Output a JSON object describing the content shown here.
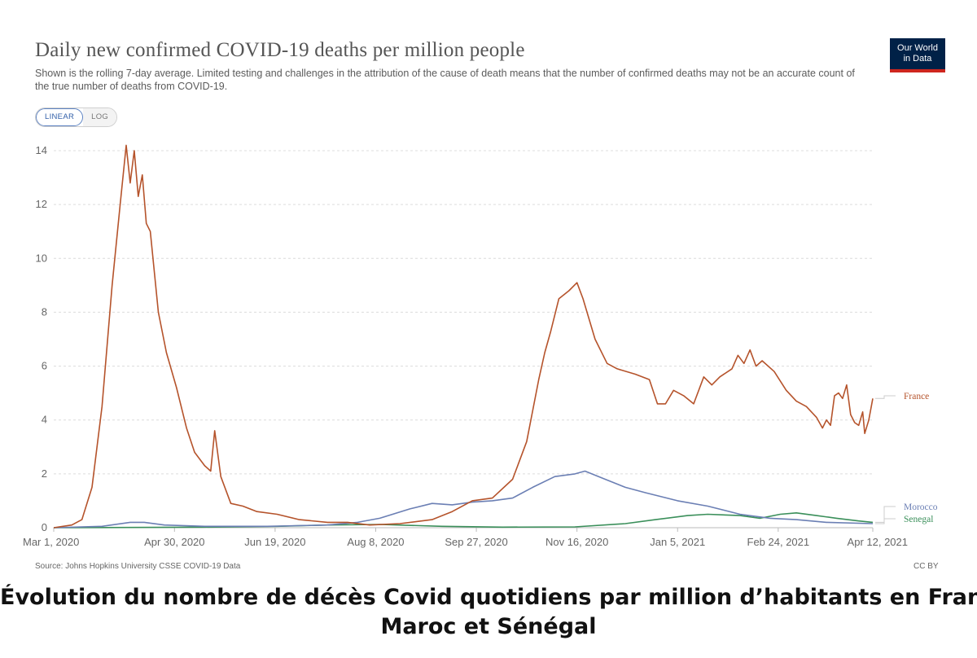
{
  "header": {
    "title": "Daily new confirmed COVID-19 deaths per million people",
    "subtitle": "Shown is the rolling 7-day average. Limited testing and challenges in the attribution of the cause of death means that the number of confirmed deaths may not be an accurate count of the true number of deaths from COVID-19.",
    "logo_line1": "Our World",
    "logo_line2": "in Data"
  },
  "controls": {
    "linear_label": "LINEAR",
    "log_label": "LOG",
    "active": "LINEAR"
  },
  "footer": {
    "source": "Source: Johns Hopkins University CSSE COVID-19 Data",
    "license": "CC BY"
  },
  "caption": {
    "line1": "Évolution du nombre de décès Covid quotidiens par million d’habitants en France,",
    "line2": "Maroc et Sénégal"
  },
  "chart_data": {
    "type": "line",
    "title": "Daily new confirmed COVID-19 deaths per million people",
    "ylim": [
      0,
      14
    ],
    "yticks": [
      0,
      2,
      4,
      6,
      8,
      10,
      12,
      14
    ],
    "xlim": [
      "2020-03-01",
      "2021-04-12"
    ],
    "xticks": [
      "Mar 1, 2020",
      "Apr 30, 2020",
      "Jun 19, 2020",
      "Aug 8, 2020",
      "Sep 27, 2020",
      "Nov 16, 2020",
      "Jan 5, 2021",
      "Feb 24, 2021",
      "Apr 12, 2021"
    ],
    "xtick_dates": [
      "2020-03-01",
      "2020-04-30",
      "2020-06-19",
      "2020-08-08",
      "2020-09-27",
      "2020-11-16",
      "2021-01-05",
      "2021-02-24",
      "2021-04-12"
    ],
    "grid": "horizontal dotted",
    "legend": "line-end labels at right",
    "series": [
      {
        "name": "France",
        "color": "#b5532b",
        "points": [
          [
            "2020-03-01",
            0
          ],
          [
            "2020-03-10",
            0.1
          ],
          [
            "2020-03-15",
            0.3
          ],
          [
            "2020-03-20",
            1.5
          ],
          [
            "2020-03-25",
            4.5
          ],
          [
            "2020-03-30",
            9.0
          ],
          [
            "2020-04-03",
            12.0
          ],
          [
            "2020-04-06",
            14.2
          ],
          [
            "2020-04-08",
            12.8
          ],
          [
            "2020-04-10",
            14.0
          ],
          [
            "2020-04-12",
            12.3
          ],
          [
            "2020-04-14",
            13.1
          ],
          [
            "2020-04-16",
            11.3
          ],
          [
            "2020-04-18",
            11.0
          ],
          [
            "2020-04-22",
            8.0
          ],
          [
            "2020-04-26",
            6.5
          ],
          [
            "2020-05-01",
            5.2
          ],
          [
            "2020-05-06",
            3.7
          ],
          [
            "2020-05-10",
            2.8
          ],
          [
            "2020-05-15",
            2.3
          ],
          [
            "2020-05-18",
            2.1
          ],
          [
            "2020-05-20",
            3.6
          ],
          [
            "2020-05-23",
            1.9
          ],
          [
            "2020-05-28",
            0.9
          ],
          [
            "2020-06-03",
            0.8
          ],
          [
            "2020-06-10",
            0.6
          ],
          [
            "2020-06-20",
            0.5
          ],
          [
            "2020-07-01",
            0.3
          ],
          [
            "2020-07-15",
            0.2
          ],
          [
            "2020-07-25",
            0.2
          ],
          [
            "2020-08-05",
            0.1
          ],
          [
            "2020-08-20",
            0.15
          ],
          [
            "2020-09-05",
            0.3
          ],
          [
            "2020-09-15",
            0.6
          ],
          [
            "2020-09-25",
            1.0
          ],
          [
            "2020-10-05",
            1.1
          ],
          [
            "2020-10-15",
            1.8
          ],
          [
            "2020-10-22",
            3.2
          ],
          [
            "2020-10-28",
            5.5
          ],
          [
            "2020-10-31",
            6.5
          ],
          [
            "2020-11-03",
            7.3
          ],
          [
            "2020-11-07",
            8.5
          ],
          [
            "2020-11-12",
            8.8
          ],
          [
            "2020-11-16",
            9.1
          ],
          [
            "2020-11-19",
            8.5
          ],
          [
            "2020-11-25",
            7.0
          ],
          [
            "2020-12-01",
            6.1
          ],
          [
            "2020-12-06",
            5.9
          ],
          [
            "2020-12-15",
            5.7
          ],
          [
            "2020-12-22",
            5.5
          ],
          [
            "2020-12-26",
            4.6
          ],
          [
            "2020-12-30",
            4.6
          ],
          [
            "2021-01-03",
            5.1
          ],
          [
            "2021-01-08",
            4.9
          ],
          [
            "2021-01-13",
            4.6
          ],
          [
            "2021-01-18",
            5.6
          ],
          [
            "2021-01-22",
            5.3
          ],
          [
            "2021-01-26",
            5.6
          ],
          [
            "2021-02-01",
            5.9
          ],
          [
            "2021-02-04",
            6.4
          ],
          [
            "2021-02-07",
            6.1
          ],
          [
            "2021-02-10",
            6.6
          ],
          [
            "2021-02-13",
            6.0
          ],
          [
            "2021-02-16",
            6.2
          ],
          [
            "2021-02-22",
            5.8
          ],
          [
            "2021-02-28",
            5.1
          ],
          [
            "2021-03-05",
            4.7
          ],
          [
            "2021-03-10",
            4.5
          ],
          [
            "2021-03-15",
            4.1
          ],
          [
            "2021-03-18",
            3.7
          ],
          [
            "2021-03-20",
            4.0
          ],
          [
            "2021-03-22",
            3.8
          ],
          [
            "2021-03-24",
            4.9
          ],
          [
            "2021-03-26",
            5.0
          ],
          [
            "2021-03-28",
            4.8
          ],
          [
            "2021-03-30",
            5.3
          ],
          [
            "2021-04-01",
            4.2
          ],
          [
            "2021-04-03",
            3.9
          ],
          [
            "2021-04-05",
            3.8
          ],
          [
            "2021-04-07",
            4.3
          ],
          [
            "2021-04-08",
            3.5
          ],
          [
            "2021-04-10",
            4.0
          ],
          [
            "2021-04-12",
            4.8
          ]
        ]
      },
      {
        "name": "Morocco",
        "color": "#6b7fb4",
        "points": [
          [
            "2020-03-01",
            0
          ],
          [
            "2020-03-25",
            0.05
          ],
          [
            "2020-04-08",
            0.2
          ],
          [
            "2020-04-15",
            0.2
          ],
          [
            "2020-04-25",
            0.1
          ],
          [
            "2020-05-15",
            0.05
          ],
          [
            "2020-06-15",
            0.05
          ],
          [
            "2020-07-15",
            0.1
          ],
          [
            "2020-07-30",
            0.2
          ],
          [
            "2020-08-10",
            0.35
          ],
          [
            "2020-08-25",
            0.7
          ],
          [
            "2020-09-05",
            0.9
          ],
          [
            "2020-09-15",
            0.85
          ],
          [
            "2020-09-25",
            0.95
          ],
          [
            "2020-10-05",
            1.0
          ],
          [
            "2020-10-15",
            1.1
          ],
          [
            "2020-10-25",
            1.5
          ],
          [
            "2020-11-05",
            1.9
          ],
          [
            "2020-11-15",
            2.0
          ],
          [
            "2020-11-20",
            2.1
          ],
          [
            "2020-11-30",
            1.8
          ],
          [
            "2020-12-10",
            1.5
          ],
          [
            "2020-12-20",
            1.3
          ],
          [
            "2021-01-05",
            1.0
          ],
          [
            "2021-01-20",
            0.8
          ],
          [
            "2021-02-05",
            0.5
          ],
          [
            "2021-02-20",
            0.35
          ],
          [
            "2021-03-05",
            0.3
          ],
          [
            "2021-03-20",
            0.2
          ],
          [
            "2021-04-12",
            0.15
          ]
        ]
      },
      {
        "name": "Senegal",
        "color": "#3a8f5a",
        "points": [
          [
            "2020-03-01",
            0
          ],
          [
            "2020-05-15",
            0.02
          ],
          [
            "2020-06-20",
            0.05
          ],
          [
            "2020-07-15",
            0.1
          ],
          [
            "2020-08-10",
            0.12
          ],
          [
            "2020-09-10",
            0.05
          ],
          [
            "2020-10-10",
            0.02
          ],
          [
            "2020-11-15",
            0.03
          ],
          [
            "2020-12-10",
            0.15
          ],
          [
            "2020-12-25",
            0.3
          ],
          [
            "2021-01-10",
            0.45
          ],
          [
            "2021-01-20",
            0.5
          ],
          [
            "2021-02-05",
            0.45
          ],
          [
            "2021-02-15",
            0.35
          ],
          [
            "2021-02-25",
            0.5
          ],
          [
            "2021-03-05",
            0.55
          ],
          [
            "2021-03-15",
            0.45
          ],
          [
            "2021-03-25",
            0.35
          ],
          [
            "2021-04-05",
            0.25
          ],
          [
            "2021-04-12",
            0.2
          ]
        ]
      }
    ]
  }
}
